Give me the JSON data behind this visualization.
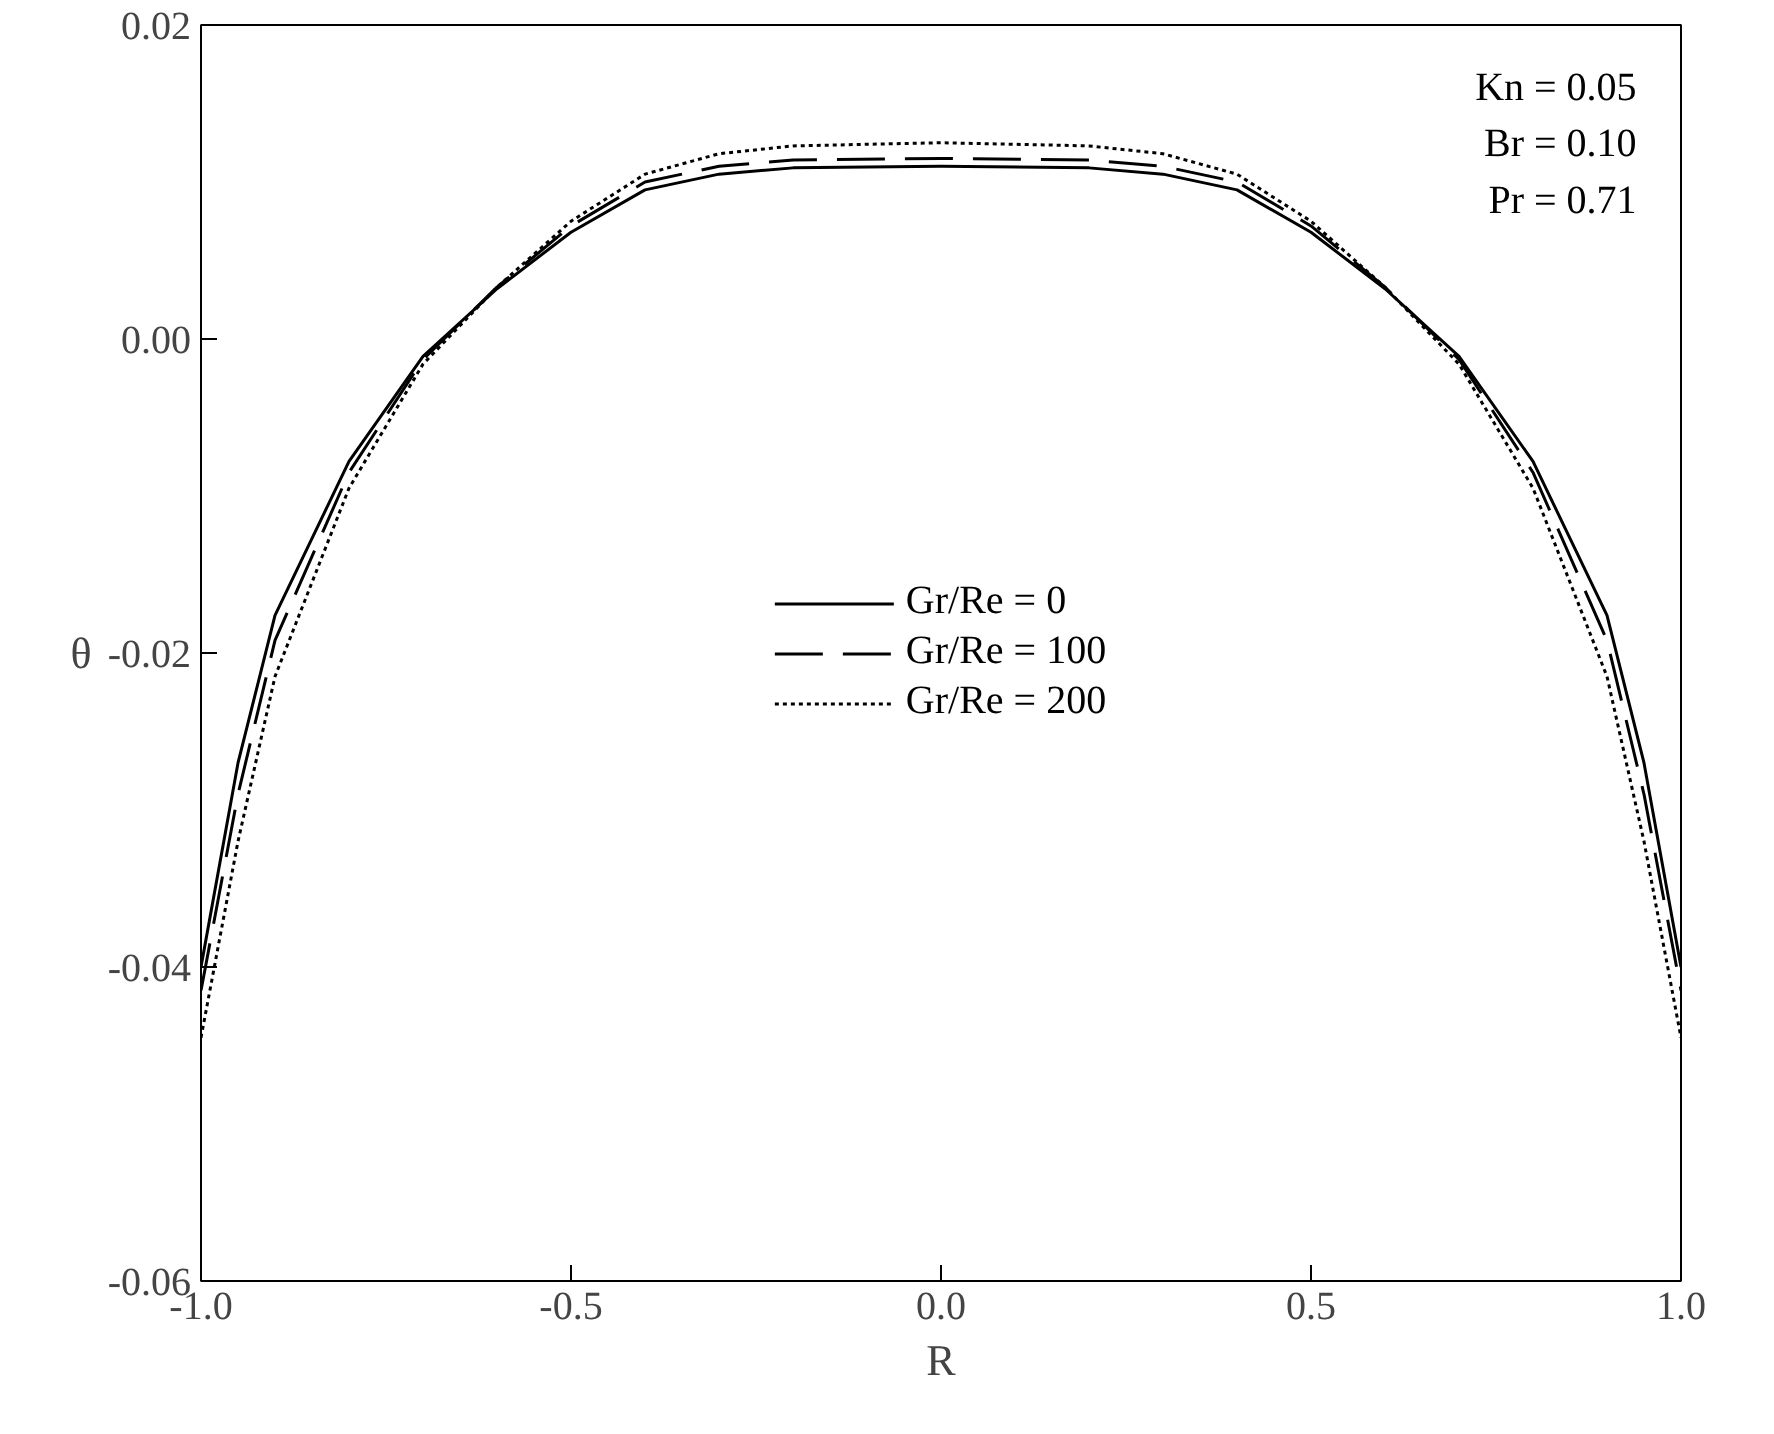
{
  "chart_data": {
    "type": "line",
    "xlabel": "R",
    "ylabel": "θ",
    "x": [
      -1.0,
      -0.95,
      -0.9,
      -0.8,
      -0.7,
      -0.6,
      -0.5,
      -0.4,
      -0.3,
      -0.2,
      0.0,
      0.2,
      0.3,
      0.4,
      0.5,
      0.6,
      0.7,
      0.8,
      0.9,
      0.95,
      1.0
    ],
    "series": [
      {
        "name": "Gr/Re = 0",
        "color": "#000000",
        "line_style": "solid",
        "values": [
          -0.04,
          -0.027,
          -0.0176,
          -0.0078,
          -0.0011,
          0.0032,
          0.0068,
          0.0095,
          0.0105,
          0.0109,
          0.011,
          0.0109,
          0.0105,
          0.0095,
          0.0068,
          0.0032,
          -0.0011,
          -0.0078,
          -0.0176,
          -0.027,
          -0.04
        ]
      },
      {
        "name": "Gr/Re = 100",
        "color": "#000000",
        "line_style": "dashed",
        "values": [
          -0.0415,
          -0.029,
          -0.0192,
          -0.0085,
          -0.0013,
          0.0033,
          0.0072,
          0.01,
          0.011,
          0.0114,
          0.0115,
          0.0114,
          0.011,
          0.01,
          0.0072,
          0.0033,
          -0.0013,
          -0.0085,
          -0.0192,
          -0.029,
          -0.0415
        ]
      },
      {
        "name": "Gr/Re = 200",
        "color": "#000000",
        "line_style": "dotted",
        "values": [
          -0.0445,
          -0.032,
          -0.0215,
          -0.0095,
          -0.0016,
          0.0033,
          0.0075,
          0.0105,
          0.0118,
          0.0123,
          0.0125,
          0.0123,
          0.0118,
          0.0105,
          0.0075,
          0.0033,
          -0.0016,
          -0.0095,
          -0.0215,
          -0.032,
          -0.0445
        ]
      }
    ],
    "xlim": [
      -1.0,
      1.0
    ],
    "ylim": [
      -0.06,
      0.02
    ],
    "xticks": [
      {
        "value": -1.0,
        "label": "-1.0"
      },
      -0.5,
      {
        "value": 0.0,
        "label": "0.0"
      },
      0.5,
      {
        "value": 1.0,
        "label": "1.0"
      }
    ],
    "yticks": [
      -0.06,
      -0.04,
      -0.02,
      {
        "value": 0.0,
        "label": "0.00"
      },
      0.02
    ],
    "annotations": [
      "Kn = 0.05",
      "Br = 0.10",
      "Pr = 0.71"
    ],
    "legend": "center",
    "grid": false
  }
}
